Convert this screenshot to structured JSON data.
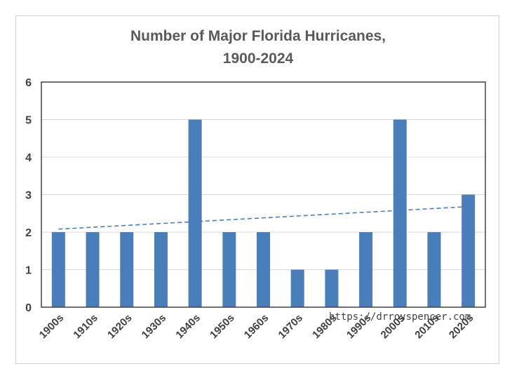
{
  "chart_data": {
    "type": "bar",
    "title": "Number of Major Florida Hurricanes,",
    "subtitle": "1900-2024",
    "categories": [
      "1900s",
      "1910s",
      "1920s",
      "1930s",
      "1940s",
      "1950s",
      "1960s",
      "1970s",
      "1980s",
      "1990s",
      "2000s",
      "2010s",
      "2020s"
    ],
    "values": [
      2,
      2,
      2,
      2,
      5,
      2,
      2,
      1,
      1,
      2,
      5,
      2,
      3
    ],
    "ylim": [
      0,
      6
    ],
    "yticks": [
      0,
      1,
      2,
      3,
      4,
      5,
      6
    ],
    "grid": true,
    "bar_color": "#4a7ebb",
    "trendline": {
      "style": "dashed",
      "color": "#4a7ebb",
      "start": 2.08,
      "end": 2.68
    },
    "annotation": "https://drroyspencer.com"
  }
}
